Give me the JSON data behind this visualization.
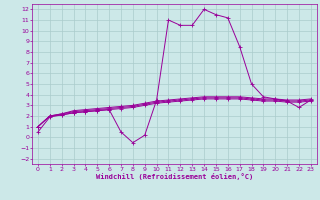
{
  "xlabel": "Windchill (Refroidissement éolien,°C)",
  "bg_color": "#cce8e8",
  "line_color": "#990099",
  "grid_color": "#aacccc",
  "xlim": [
    -0.5,
    23.5
  ],
  "ylim": [
    -2.5,
    12.5
  ],
  "xticks": [
    0,
    1,
    2,
    3,
    4,
    5,
    6,
    7,
    8,
    9,
    10,
    11,
    12,
    13,
    14,
    15,
    16,
    17,
    18,
    19,
    20,
    21,
    22,
    23
  ],
  "yticks": [
    -2,
    -1,
    0,
    1,
    2,
    3,
    4,
    5,
    6,
    7,
    8,
    9,
    10,
    11,
    12
  ],
  "series": [
    [
      1.0,
      2.0,
      2.2,
      2.5,
      2.6,
      2.7,
      2.8,
      2.9,
      3.0,
      3.2,
      3.4,
      3.5,
      3.6,
      3.7,
      3.8,
      3.8,
      3.8,
      3.8,
      3.7,
      3.6,
      3.6,
      3.5,
      3.5,
      3.6
    ],
    [
      1.0,
      2.0,
      2.2,
      2.4,
      2.5,
      2.6,
      2.7,
      2.8,
      2.9,
      3.1,
      3.3,
      3.4,
      3.5,
      3.6,
      3.7,
      3.7,
      3.7,
      3.7,
      3.6,
      3.5,
      3.5,
      3.4,
      3.4,
      3.5
    ],
    [
      1.0,
      2.0,
      2.1,
      2.3,
      2.4,
      2.5,
      2.6,
      2.7,
      2.8,
      3.0,
      3.2,
      3.3,
      3.4,
      3.5,
      3.6,
      3.6,
      3.6,
      3.6,
      3.5,
      3.4,
      3.4,
      3.3,
      3.3,
      3.4
    ],
    [
      0.5,
      1.9,
      2.1,
      2.3,
      2.4,
      2.5,
      2.6,
      0.5,
      -0.5,
      0.2,
      3.5,
      11.0,
      10.5,
      10.5,
      12.0,
      11.5,
      11.2,
      8.5,
      5.0,
      3.8,
      3.6,
      3.4,
      2.8,
      3.5
    ]
  ],
  "series_lw": [
    0.8,
    0.8,
    0.8,
    0.8
  ]
}
